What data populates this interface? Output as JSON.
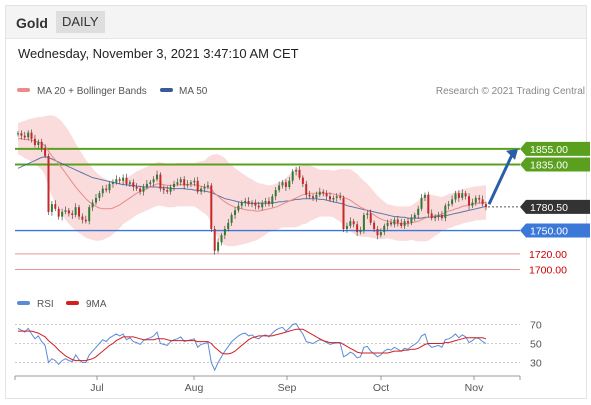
{
  "header": {
    "symbol": "Gold",
    "period": "DAILY"
  },
  "datetime": "Wednesday, November 3, 2021 3:47:10 AM CET",
  "credit": "Research © 2021 Trading Central",
  "colors": {
    "resistance": "#5aa01e",
    "pivot": "#3c78d8",
    "support": "#e06666",
    "price_tag": "#333333",
    "candle_up": "#2e7d32",
    "candle_down": "#c62828",
    "ma20": "#e88a8a",
    "ma50": "#3a5a99",
    "bollinger": "#f8d0d0",
    "rsi": "#5a8ad8",
    "rsi_ma": "#d21f1f"
  },
  "chart_data": [
    {
      "type": "line",
      "title": "",
      "legend": [
        {
          "label": "MA 20 + Bollinger Bands",
          "color": "#f08a8a"
        },
        {
          "label": "MA 50",
          "color": "#3a5a99"
        }
      ],
      "x_ticks": [
        "Jul",
        "Aug",
        "Sep",
        "Oct",
        "Nov"
      ],
      "ylim": [
        1680,
        1905
      ],
      "levels": [
        {
          "value": 1855.0,
          "label": "1855.00",
          "kind": "resistance"
        },
        {
          "value": 1835.0,
          "label": "1835.00",
          "kind": "resistance"
        },
        {
          "value": 1780.5,
          "label": "1780.50",
          "kind": "last"
        },
        {
          "value": 1750.0,
          "label": "1750.00",
          "kind": "pivot"
        },
        {
          "value": 1720.0,
          "label": "1720.00",
          "kind": "support"
        },
        {
          "value": 1700.0,
          "label": "1700.00",
          "kind": "support"
        }
      ],
      "close": [
        1875,
        1872,
        1870,
        1876,
        1868,
        1860,
        1864,
        1856,
        1846,
        1774,
        1784,
        1778,
        1768,
        1774,
        1776,
        1772,
        1770,
        1780,
        1768,
        1764,
        1762,
        1780,
        1786,
        1792,
        1798,
        1804,
        1802,
        1810,
        1812,
        1816,
        1814,
        1818,
        1810,
        1812,
        1806,
        1804,
        1800,
        1806,
        1810,
        1812,
        1816,
        1822,
        1804,
        1802,
        1800,
        1806,
        1810,
        1812,
        1816,
        1808,
        1810,
        1812,
        1814,
        1800,
        1804,
        1806,
        1808,
        1752,
        1724,
        1735,
        1744,
        1752,
        1760,
        1770,
        1776,
        1782,
        1786,
        1788,
        1784,
        1786,
        1782,
        1780,
        1786,
        1788,
        1784,
        1794,
        1802,
        1808,
        1812,
        1806,
        1814,
        1826,
        1828,
        1818,
        1810,
        1796,
        1794,
        1792,
        1796,
        1800,
        1798,
        1794,
        1790,
        1792,
        1794,
        1792,
        1752,
        1756,
        1762,
        1758,
        1748,
        1750,
        1770,
        1772,
        1760,
        1752,
        1744,
        1748,
        1756,
        1760,
        1758,
        1764,
        1760,
        1756,
        1762,
        1760,
        1766,
        1770,
        1778,
        1792,
        1796,
        1772,
        1766,
        1768,
        1770,
        1766,
        1782,
        1784,
        1790,
        1798,
        1792,
        1798,
        1794,
        1782,
        1786,
        1792,
        1790,
        1784,
        1780
      ],
      "ma20": [
        1868,
        1868,
        1867,
        1867,
        1866,
        1865,
        1864,
        1862,
        1859,
        1852,
        1846,
        1841,
        1836,
        1830,
        1824,
        1818,
        1812,
        1806,
        1801,
        1796,
        1791,
        1787,
        1784,
        1781,
        1779,
        1778,
        1778,
        1778,
        1779,
        1781,
        1783,
        1786,
        1789,
        1792,
        1795,
        1798,
        1800,
        1802,
        1804,
        1806,
        1808,
        1810,
        1810,
        1809,
        1808,
        1808,
        1808,
        1809,
        1809,
        1809,
        1809,
        1809,
        1809,
        1808,
        1807,
        1806,
        1806,
        1803,
        1798,
        1794,
        1790,
        1787,
        1784,
        1782,
        1780,
        1779,
        1778,
        1777,
        1776,
        1776,
        1775,
        1775,
        1776,
        1777,
        1778,
        1779,
        1780,
        1782,
        1784,
        1786,
        1788,
        1790,
        1792,
        1794,
        1796,
        1797,
        1798,
        1798,
        1798,
        1798,
        1798,
        1798,
        1798,
        1797,
        1796,
        1795,
        1793,
        1791,
        1789,
        1786,
        1783,
        1780,
        1778,
        1776,
        1773,
        1770,
        1767,
        1765,
        1763,
        1762,
        1761,
        1760,
        1759,
        1759,
        1759,
        1759,
        1760,
        1761,
        1762,
        1764,
        1766,
        1767,
        1768,
        1769,
        1770,
        1771,
        1773,
        1775,
        1776,
        1778,
        1779,
        1781,
        1782,
        1783,
        1784,
        1785,
        1785,
        1786,
        1786
      ],
      "ma50": [
        1830,
        1832,
        1834,
        1836,
        1838,
        1840,
        1842,
        1844,
        1845,
        1844,
        1842,
        1840,
        1838,
        1836,
        1834,
        1832,
        1830,
        1828,
        1826,
        1824,
        1822,
        1820,
        1818,
        1817,
        1816,
        1815,
        1814,
        1813,
        1812,
        1811,
        1810,
        1809,
        1809,
        1808,
        1808,
        1807,
        1807,
        1806,
        1806,
        1806,
        1806,
        1806,
        1805,
        1805,
        1805,
        1804,
        1804,
        1804,
        1804,
        1804,
        1803,
        1803,
        1802,
        1802,
        1801,
        1801,
        1800,
        1799,
        1797,
        1795,
        1793,
        1791,
        1790,
        1789,
        1788,
        1787,
        1786,
        1786,
        1785,
        1785,
        1785,
        1785,
        1785,
        1785,
        1785,
        1786,
        1786,
        1787,
        1787,
        1788,
        1788,
        1789,
        1790,
        1790,
        1791,
        1791,
        1791,
        1791,
        1791,
        1790,
        1790,
        1789,
        1788,
        1787,
        1786,
        1785,
        1784,
        1782,
        1781,
        1780,
        1779,
        1778,
        1777,
        1776,
        1775,
        1774,
        1773,
        1772,
        1771,
        1770,
        1769,
        1768,
        1768,
        1767,
        1767,
        1766,
        1766,
        1766,
        1766,
        1766,
        1767,
        1767,
        1767,
        1768,
        1768,
        1769,
        1769,
        1770,
        1771,
        1772,
        1773,
        1774,
        1775,
        1776,
        1777,
        1778,
        1779,
        1780,
        1781
      ],
      "bb_width": [
        20,
        22,
        24,
        26,
        28,
        30,
        32,
        34,
        38,
        46,
        52,
        56,
        58,
        60,
        60,
        60,
        58,
        56,
        54,
        52,
        50,
        48,
        46,
        44,
        42,
        40,
        38,
        36,
        34,
        32,
        30,
        28,
        28,
        28,
        28,
        28,
        28,
        28,
        28,
        28,
        28,
        28,
        28,
        28,
        28,
        28,
        28,
        28,
        28,
        28,
        28,
        28,
        28,
        30,
        32,
        34,
        38,
        44,
        50,
        54,
        56,
        56,
        54,
        52,
        50,
        48,
        46,
        44,
        42,
        40,
        38,
        36,
        34,
        32,
        30,
        30,
        30,
        30,
        30,
        32,
        34,
        36,
        38,
        38,
        38,
        38,
        36,
        34,
        32,
        30,
        30,
        30,
        30,
        30,
        32,
        34,
        36,
        38,
        40,
        40,
        40,
        38,
        36,
        34,
        32,
        30,
        28,
        26,
        24,
        22,
        22,
        22,
        22,
        22,
        22,
        22,
        22,
        24,
        26,
        28,
        30,
        30,
        28,
        26,
        24,
        22,
        22,
        22,
        22,
        22,
        22,
        22,
        22,
        22,
        22,
        22,
        22,
        22,
        22
      ]
    },
    {
      "type": "line",
      "title": "",
      "legend": [
        {
          "label": "RSI",
          "color": "#5a8ad8"
        },
        {
          "label": "9MA",
          "color": "#d21f1f"
        }
      ],
      "y_ticks": [
        70,
        50,
        30
      ],
      "ylim": [
        20,
        80
      ],
      "rsi": [
        66,
        64,
        62,
        66,
        60,
        55,
        58,
        52,
        48,
        30,
        34,
        32,
        28,
        32,
        34,
        32,
        31,
        38,
        33,
        30,
        30,
        38,
        42,
        46,
        50,
        54,
        52,
        56,
        58,
        60,
        58,
        60,
        54,
        56,
        52,
        51,
        49,
        53,
        55,
        56,
        58,
        62,
        50,
        49,
        48,
        52,
        54,
        55,
        57,
        52,
        53,
        54,
        55,
        46,
        49,
        50,
        51,
        30,
        22,
        30,
        36,
        42,
        47,
        52,
        55,
        58,
        60,
        61,
        58,
        59,
        56,
        55,
        58,
        59,
        57,
        61,
        64,
        66,
        67,
        63,
        66,
        70,
        71,
        65,
        60,
        52,
        51,
        50,
        52,
        54,
        53,
        51,
        49,
        50,
        51,
        50,
        36,
        38,
        41,
        39,
        35,
        36,
        46,
        47,
        42,
        39,
        36,
        38,
        42,
        44,
        43,
        46,
        44,
        42,
        45,
        44,
        47,
        49,
        52,
        58,
        60,
        49,
        46,
        47,
        48,
        46,
        54,
        55,
        57,
        60,
        56,
        59,
        57,
        51,
        53,
        56,
        55,
        52,
        50
      ],
      "rsi_ma": [
        63,
        63,
        63,
        63,
        63,
        62,
        61,
        59,
        57,
        53,
        50,
        47,
        43,
        40,
        37,
        35,
        33,
        32,
        32,
        32,
        32,
        33,
        34,
        36,
        39,
        42,
        45,
        48,
        50,
        53,
        55,
        57,
        57,
        57,
        57,
        56,
        55,
        54,
        54,
        54,
        54,
        55,
        55,
        55,
        54,
        53,
        53,
        53,
        53,
        53,
        53,
        53,
        53,
        52,
        52,
        52,
        52,
        50,
        46,
        43,
        40,
        39,
        39,
        40,
        42,
        45,
        48,
        51,
        54,
        56,
        57,
        58,
        58,
        58,
        58,
        58,
        59,
        60,
        61,
        62,
        63,
        64,
        65,
        65,
        65,
        63,
        61,
        59,
        57,
        55,
        53,
        52,
        51,
        51,
        51,
        51,
        49,
        47,
        45,
        43,
        41,
        40,
        40,
        40,
        40,
        40,
        40,
        40,
        40,
        40,
        41,
        42,
        42,
        42,
        43,
        43,
        44,
        44,
        45,
        47,
        49,
        50,
        50,
        50,
        50,
        50,
        51,
        51,
        52,
        53,
        54,
        55,
        56,
        56,
        56,
        56,
        56,
        56,
        55
      ]
    }
  ]
}
